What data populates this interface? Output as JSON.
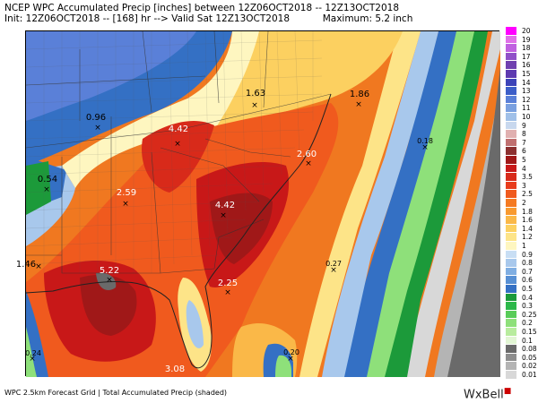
{
  "header": {
    "line1": "NCEP WPC Accumulated Precip [inches] between 12Z06OCT2018 -- 12Z13OCT2018",
    "line2": "Init: 12Z06OCT2018 -- [168] hr --> Valid Sat 12Z13OCT2018           Maximum: 5.2 inch"
  },
  "map": {
    "point_labels": [
      {
        "id": "a",
        "text": "1.63",
        "color": "#000000"
      },
      {
        "id": "b",
        "text": "1.86",
        "color": "#000000"
      },
      {
        "id": "c",
        "text": "0.96",
        "color": "#000000"
      },
      {
        "id": "d",
        "text": "4.42",
        "color": "#ffffff"
      },
      {
        "id": "e",
        "text": "2.60",
        "color": "#ffffff"
      },
      {
        "id": "f",
        "text": "0.18",
        "color": "#000000"
      },
      {
        "id": "g",
        "text": "0.54",
        "color": "#000000"
      },
      {
        "id": "h",
        "text": "2.59",
        "color": "#ffffff"
      },
      {
        "id": "i",
        "text": "4.42",
        "color": "#ffffff"
      },
      {
        "id": "j",
        "text": "1.46",
        "color": "#000000"
      },
      {
        "id": "k",
        "text": "5.22",
        "color": "#ffffff"
      },
      {
        "id": "l",
        "text": "0.27",
        "color": "#000000"
      },
      {
        "id": "m",
        "text": "2.25",
        "color": "#ffffff"
      },
      {
        "id": "n",
        "text": "0.24",
        "color": "#000000"
      },
      {
        "id": "o",
        "text": "0.20",
        "color": "#000000"
      },
      {
        "id": "p",
        "text": "3.08",
        "color": "#ffffff"
      }
    ]
  },
  "legend": [
    {
      "label": "20",
      "color": "#ff00ff"
    },
    {
      "label": "19",
      "color": "#e070e8"
    },
    {
      "label": "18",
      "color": "#c060e0"
    },
    {
      "label": "17",
      "color": "#9050c8"
    },
    {
      "label": "16",
      "color": "#7040b0"
    },
    {
      "label": "15",
      "color": "#5d3ab0"
    },
    {
      "label": "14",
      "color": "#3c43b8"
    },
    {
      "label": "13",
      "color": "#3c5ec8"
    },
    {
      "label": "12",
      "color": "#5a80d8"
    },
    {
      "label": "11",
      "color": "#7aa0e0"
    },
    {
      "label": "10",
      "color": "#a0c0e8"
    },
    {
      "label": "9",
      "color": "#c8d8ee"
    },
    {
      "label": "8",
      "color": "#e0b0b0"
    },
    {
      "label": "7",
      "color": "#c07070"
    },
    {
      "label": "6",
      "color": "#8c3030"
    },
    {
      "label": "5",
      "color": "#a01818"
    },
    {
      "label": "4",
      "color": "#c81818"
    },
    {
      "label": "3.5",
      "color": "#d82a1a"
    },
    {
      "label": "3",
      "color": "#e83c1c"
    },
    {
      "label": "2.5",
      "color": "#f05a1e"
    },
    {
      "label": "2",
      "color": "#f57a22"
    },
    {
      "label": "1.8",
      "color": "#f89a30"
    },
    {
      "label": "1.6",
      "color": "#fab848"
    },
    {
      "label": "1.4",
      "color": "#fcd060"
    },
    {
      "label": "1.2",
      "color": "#fde488"
    },
    {
      "label": "1",
      "color": "#fef6c0"
    },
    {
      "label": "0.9",
      "color": "#c8def4"
    },
    {
      "label": "0.8",
      "color": "#a8c8ec"
    },
    {
      "label": "0.7",
      "color": "#80aee2"
    },
    {
      "label": "0.6",
      "color": "#5890d4"
    },
    {
      "label": "0.5",
      "color": "#3470c4"
    },
    {
      "label": "0.4",
      "color": "#1c9a3a"
    },
    {
      "label": "0.3",
      "color": "#2cb84a"
    },
    {
      "label": "0.25",
      "color": "#58cc58"
    },
    {
      "label": "0.2",
      "color": "#8ee07a"
    },
    {
      "label": "0.15",
      "color": "#b8ec9e"
    },
    {
      "label": "0.1",
      "color": "#e2f6d4"
    },
    {
      "label": "0.08",
      "color": "#6a6a6a"
    },
    {
      "label": "0.05",
      "color": "#8e8e8e"
    },
    {
      "label": "0.02",
      "color": "#b4b4b4"
    },
    {
      "label": "0.01",
      "color": "#d8d8d8"
    }
  ],
  "footer": {
    "left": "WPC 2.5km Forecast Grid | Total Accumulated Precip (shaded)",
    "brand": "WxBell"
  }
}
